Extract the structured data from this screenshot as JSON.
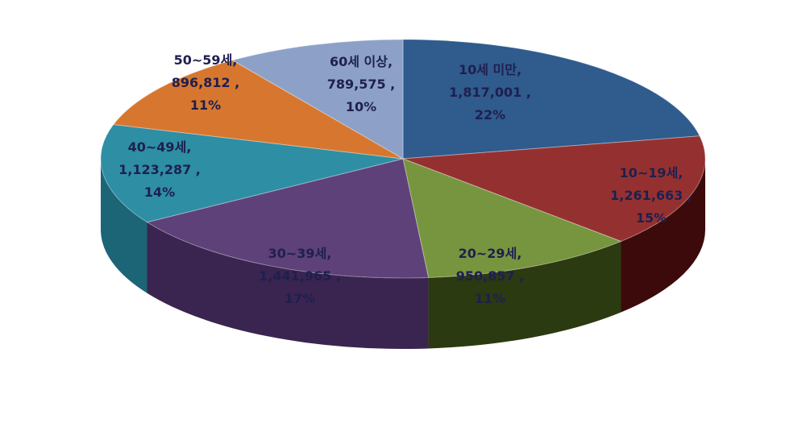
{
  "chart_data": {
    "type": "pie",
    "style": "3d",
    "start": "12 o'clock",
    "direction": "clockwise",
    "series": [
      {
        "label": "10세 미만,",
        "value": "1,817,001 ,",
        "percent": "22%",
        "amount": 1817001,
        "color": "#2f5b8d",
        "side_color": "#1c3656"
      },
      {
        "label": "10~19세,",
        "value": "1,261,663 ,",
        "percent": "15%",
        "amount": 1261663,
        "color": "#943130",
        "side_color": "#3c0a0a"
      },
      {
        "label": "20~29세,",
        "value": "950,857 ,",
        "percent": "11%",
        "amount": 950857,
        "color": "#77953f",
        "side_color": "#2b3a10"
      },
      {
        "label": "30~39세,",
        "value": "1,441,965 ,",
        "percent": "17%",
        "amount": 1441965,
        "color": "#5e4178",
        "side_color": "#3a2450"
      },
      {
        "label": "40~49세,",
        "value": "1,123,287 ,",
        "percent": "14%",
        "amount": 1123287,
        "color": "#2d8ea4",
        "side_color": "#1c6576"
      },
      {
        "label": "50~59세,",
        "value": "896,812 ,",
        "percent": "11%",
        "amount": 896812,
        "color": "#d7772f",
        "side_color": "#8a4a1a"
      },
      {
        "label": "60세 이상,",
        "value": "789,575 ,",
        "percent": "10%",
        "amount": 789575,
        "color": "#8da1c8",
        "side_color": "#5f7194"
      }
    ]
  }
}
